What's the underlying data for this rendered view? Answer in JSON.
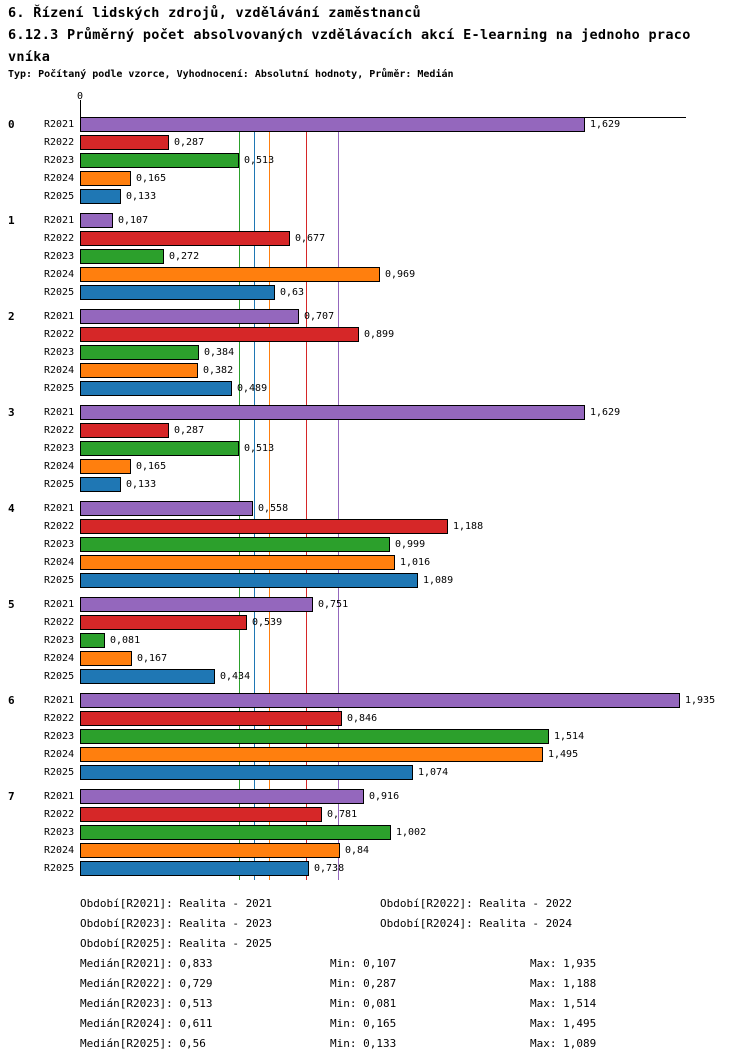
{
  "title": {
    "line1": "6. Řízení lidských zdrojů, vzdělávání zaměstnanců",
    "line2": "6.12.3 Průměrný počet absolvovaných vzdělávacích akcí E-learning na jednoho praco",
    "line3": "vníka",
    "meta": "Typ: Počítaný podle vzorce, Vyhodnocení: Absolutní hodnoty, Průměr: Medián"
  },
  "chart_data": {
    "type": "bar",
    "orientation": "horizontal",
    "axis_tick_label": "0",
    "xlim": [
      0,
      1.955
    ],
    "grid": "vertical-median-lines",
    "groups": [
      "0",
      "1",
      "2",
      "3",
      "4",
      "5",
      "6",
      "7"
    ],
    "series_labels": [
      "R2021",
      "R2022",
      "R2023",
      "R2024",
      "R2025"
    ],
    "series_colors": [
      "#9467bd",
      "#d62728",
      "#2ca02c",
      "#ff7f0e",
      "#1f77b4"
    ],
    "values": [
      [
        1.629,
        0.287,
        0.513,
        0.165,
        0.133
      ],
      [
        0.107,
        0.677,
        0.272,
        0.969,
        0.63
      ],
      [
        0.707,
        0.899,
        0.384,
        0.382,
        0.489
      ],
      [
        1.629,
        0.287,
        0.513,
        0.165,
        0.133
      ],
      [
        0.558,
        1.188,
        0.999,
        1.016,
        1.089
      ],
      [
        0.751,
        0.539,
        0.081,
        0.167,
        0.434
      ],
      [
        1.935,
        0.846,
        1.514,
        1.495,
        1.074
      ],
      [
        0.916,
        0.781,
        1.002,
        0.84,
        0.738
      ]
    ],
    "value_labels": [
      [
        "1,629",
        "0,287",
        "0,513",
        "0,165",
        "0,133"
      ],
      [
        "0,107",
        "0,677",
        "0,272",
        "0,969",
        "0,63"
      ],
      [
        "0,707",
        "0,899",
        "0,384",
        "0,382",
        "0,489"
      ],
      [
        "1,629",
        "0,287",
        "0,513",
        "0,165",
        "0,133"
      ],
      [
        "0,558",
        "1,188",
        "0,999",
        "1,016",
        "1,089"
      ],
      [
        "0,751",
        "0,539",
        "0,081",
        "0,167",
        "0,434"
      ],
      [
        "1,935",
        "0,846",
        "1,514",
        "1,495",
        "1,074"
      ],
      [
        "0,916",
        "0,781",
        "1,002",
        "0,84",
        "0,738"
      ]
    ],
    "medians": [
      0.833,
      0.729,
      0.513,
      0.611,
      0.56
    ]
  },
  "legend": {
    "periods": [
      "Období[R2021]: Realita - 2021",
      "Období[R2022]: Realita - 2022",
      "Období[R2023]: Realita - 2023",
      "Období[R2024]: Realita - 2024",
      "Období[R2025]: Realita - 2025"
    ],
    "stats": [
      {
        "median": "Medián[R2021]: 0,833",
        "min": "Min: 0,107",
        "max": "Max: 1,935"
      },
      {
        "median": "Medián[R2022]: 0,729",
        "min": "Min: 0,287",
        "max": "Max: 1,188"
      },
      {
        "median": "Medián[R2023]: 0,513",
        "min": "Min: 0,081",
        "max": "Max: 1,514"
      },
      {
        "median": "Medián[R2024]: 0,611",
        "min": "Min: 0,165",
        "max": "Max: 1,495"
      },
      {
        "median": "Medián[R2025]: 0,56",
        "min": "Min: 0,133",
        "max": "Max: 1,089"
      }
    ]
  }
}
